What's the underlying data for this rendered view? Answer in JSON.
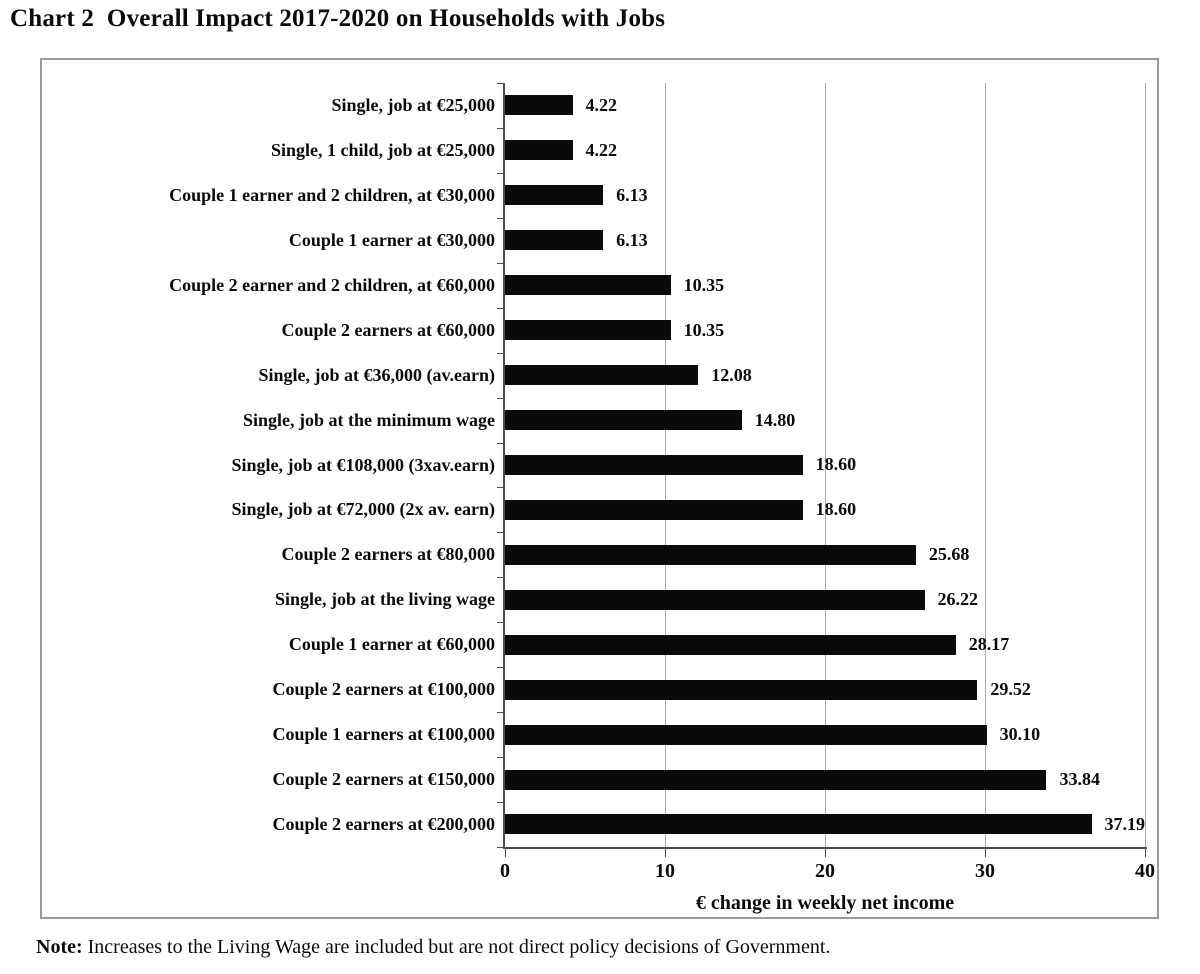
{
  "title": "Chart 2  Overall Impact 2017-2020 on Households with Jobs",
  "note": {
    "label": "Note:",
    "text": " Increases to the Living Wage are included but are not direct policy decisions of Government."
  },
  "chart_data": {
    "type": "bar",
    "orientation": "horizontal",
    "title": "Chart 2 Overall Impact 2017-2020 on Households with Jobs",
    "xlabel": "€ change in weekly net income",
    "ylabel": "",
    "xlim": [
      0,
      40
    ],
    "x_ticks": [
      0,
      10,
      20,
      30,
      40
    ],
    "grid": true,
    "bar_color": "#0a0a0a",
    "gridline_color": "#aaaaaa",
    "categories": [
      "Single, job at €25,000",
      "Single, 1 child, job at €25,000",
      "Couple 1 earner and 2 children, at €30,000",
      "Couple 1 earner at €30,000",
      "Couple 2 earner and 2 children, at €60,000",
      "Couple 2 earners at €60,000",
      "Single, job at €36,000 (av.earn)",
      "Single, job at the minimum wage",
      "Single, job at €108,000 (3xav.earn)",
      "Single, job at €72,000 (2x av. earn)",
      "Couple 2 earners at €80,000",
      "Single, job at the living wage",
      "Couple 1 earner at €60,000",
      "Couple 2 earners at €100,000",
      "Couple 1 earners at €100,000",
      "Couple 2 earners at €150,000",
      "Couple 2 earners at €200,000"
    ],
    "values": [
      4.22,
      4.22,
      6.13,
      6.13,
      10.35,
      10.35,
      12.08,
      14.8,
      18.6,
      18.6,
      25.68,
      26.22,
      28.17,
      29.52,
      30.1,
      33.84,
      37.19
    ],
    "value_labels": [
      "4.22",
      "4.22",
      "6.13",
      "6.13",
      "10.35",
      "10.35",
      "12.08",
      "14.80",
      "18.60",
      "18.60",
      "25.68",
      "26.22",
      "28.17",
      "29.52",
      "30.10",
      "33.84",
      "37.19"
    ]
  }
}
